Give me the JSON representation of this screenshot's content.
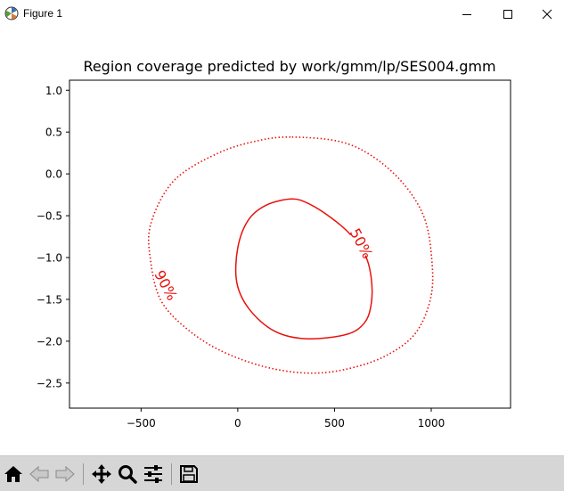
{
  "window": {
    "title": "Figure 1",
    "icon": "matplotlib-icon",
    "controls": {
      "minimize": "minimize-icon",
      "maximize": "maximize-icon",
      "close": "close-icon"
    }
  },
  "chart_data": {
    "type": "contour",
    "title": "Region coverage predicted by work/gmm/lp/SES004.gmm",
    "xlabel": "",
    "ylabel": "",
    "xlim": [
      -870,
      1410
    ],
    "ylim": [
      -2.8,
      1.12
    ],
    "xticks": [
      -500,
      0,
      500,
      1000
    ],
    "yticks": [
      1.0,
      0.5,
      0.0,
      -0.5,
      -1.0,
      -1.5,
      -2.0,
      -2.5
    ],
    "xtick_labels": [
      "−500",
      "0",
      "500",
      "1000"
    ],
    "ytick_labels": [
      "1.0",
      "0.5",
      "0.0",
      "−0.5",
      "−1.0",
      "−1.5",
      "−2.0",
      "−2.5"
    ],
    "grid": false,
    "contours": [
      {
        "level_label": "50%",
        "color": "#e8120c",
        "linestyle": "solid",
        "label_at": [
          640,
          -0.83
        ],
        "label_angle": 62,
        "points": [
          [
            280,
            -0.3
          ],
          [
            370,
            -0.36
          ],
          [
            480,
            -0.52
          ],
          [
            580,
            -0.72
          ],
          [
            660,
            -0.98
          ],
          [
            690,
            -1.25
          ],
          [
            690,
            -1.55
          ],
          [
            655,
            -1.78
          ],
          [
            560,
            -1.92
          ],
          [
            350,
            -1.97
          ],
          [
            190,
            -1.88
          ],
          [
            60,
            -1.62
          ],
          [
            -5,
            -1.3
          ],
          [
            0,
            -0.88
          ],
          [
            55,
            -0.55
          ],
          [
            150,
            -0.37
          ],
          [
            280,
            -0.3
          ]
        ]
      },
      {
        "level_label": "90%",
        "color": "#e8120c",
        "linestyle": "dotted",
        "label_at": [
          -370,
          -1.33
        ],
        "label_angle": 62,
        "points": [
          [
            280,
            0.44
          ],
          [
            520,
            0.39
          ],
          [
            690,
            0.22
          ],
          [
            850,
            -0.1
          ],
          [
            960,
            -0.5
          ],
          [
            1000,
            -0.95
          ],
          [
            1000,
            -1.45
          ],
          [
            920,
            -1.9
          ],
          [
            760,
            -2.18
          ],
          [
            550,
            -2.34
          ],
          [
            350,
            -2.38
          ],
          [
            130,
            -2.3
          ],
          [
            -100,
            -2.1
          ],
          [
            -280,
            -1.82
          ],
          [
            -400,
            -1.5
          ],
          [
            -450,
            -1.05
          ],
          [
            -450,
            -0.6
          ],
          [
            -330,
            -0.08
          ],
          [
            -100,
            0.25
          ],
          [
            110,
            0.4
          ],
          [
            280,
            0.44
          ]
        ]
      }
    ]
  },
  "toolbar": {
    "buttons": [
      {
        "name": "home-button",
        "icon": "home-icon"
      },
      {
        "name": "back-button",
        "icon": "arrow-left-icon"
      },
      {
        "name": "forward-button",
        "icon": "arrow-right-icon"
      },
      {
        "name": "pan-button",
        "icon": "move-icon"
      },
      {
        "name": "zoom-button",
        "icon": "magnifier-icon"
      },
      {
        "name": "configure-subplots-button",
        "icon": "sliders-icon"
      },
      {
        "name": "save-button",
        "icon": "floppy-disk-icon"
      }
    ]
  }
}
